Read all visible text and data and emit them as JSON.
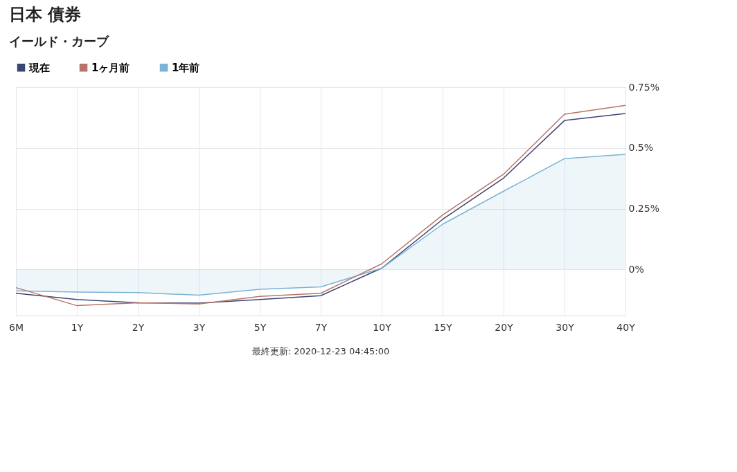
{
  "chart_data": {
    "type": "line",
    "title": "日本 債券",
    "subtitle": "イールド・カーブ",
    "categories": [
      "6M",
      "1Y",
      "2Y",
      "3Y",
      "5Y",
      "7Y",
      "10Y",
      "15Y",
      "20Y",
      "30Y",
      "40Y"
    ],
    "series": [
      {
        "name": "現在",
        "color": "#3d4573",
        "values": [
          -0.098,
          -0.124,
          -0.137,
          -0.139,
          -0.124,
          -0.108,
          0.005,
          0.206,
          0.376,
          0.613,
          0.642
        ]
      },
      {
        "name": "1ヶ月前",
        "color": "#b87468",
        "values": [
          -0.075,
          -0.149,
          -0.137,
          -0.142,
          -0.111,
          -0.098,
          0.023,
          0.224,
          0.392,
          0.639,
          0.675
        ]
      },
      {
        "name": "1年前",
        "color": "#7ab3d4",
        "type": "area",
        "values": [
          -0.088,
          -0.093,
          -0.095,
          -0.106,
          -0.082,
          -0.072,
          0.005,
          0.186,
          0.322,
          0.456,
          0.474
        ]
      }
    ],
    "ylim": [
      -0.19,
      0.75
    ],
    "yticks": [
      {
        "value": 0,
        "label": "0%"
      },
      {
        "value": 0.25,
        "label": "0.25%"
      },
      {
        "value": 0.5,
        "label": "0.5%"
      },
      {
        "value": 0.75,
        "label": "0.75%"
      }
    ],
    "grid": true,
    "legend": "top left",
    "marker": "none",
    "line_style": "solid",
    "annotations": [
      "最終更新: 2020-12-23 04:45:00"
    ]
  }
}
